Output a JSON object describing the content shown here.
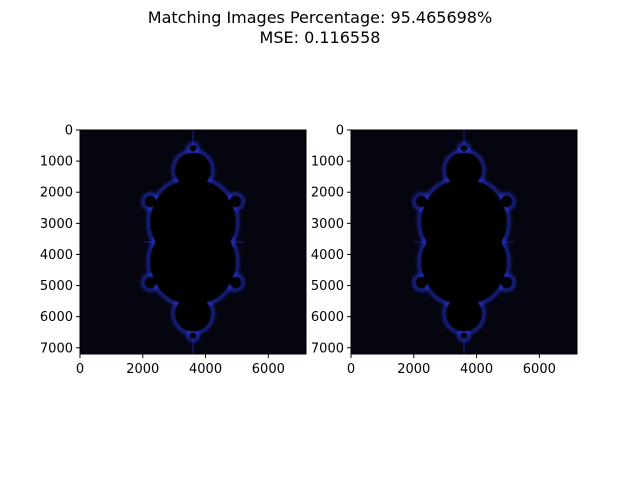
{
  "figure": {
    "title_line1": "Matching Images Percentage: 95.465698%",
    "title_line2": "MSE: 0.116558"
  },
  "chart_data": [
    {
      "type": "heatmap",
      "title": "",
      "xlabel": "",
      "ylabel": "",
      "xlim": [
        0,
        7200
      ],
      "ylim": [
        7200,
        0
      ],
      "xticks": [
        0,
        2000,
        4000,
        6000
      ],
      "yticks": [
        0,
        1000,
        2000,
        3000,
        4000,
        5000,
        6000,
        7000
      ],
      "xtick_labels": [
        "0",
        "2000",
        "4000",
        "6000"
      ],
      "ytick_labels": [
        "0",
        "1000",
        "2000",
        "3000",
        "4000",
        "5000",
        "6000",
        "7000"
      ],
      "image": "mandelbrot-set-render",
      "background_color": "#05050f",
      "set_color": "#000000",
      "edge_color": "#2a3cff"
    },
    {
      "type": "heatmap",
      "title": "",
      "xlabel": "",
      "ylabel": "",
      "xlim": [
        0,
        7200
      ],
      "ylim": [
        7200,
        0
      ],
      "xticks": [
        0,
        2000,
        4000,
        6000
      ],
      "yticks": [
        0,
        1000,
        2000,
        3000,
        4000,
        5000,
        6000,
        7000
      ],
      "xtick_labels": [
        "0",
        "2000",
        "4000",
        "6000"
      ],
      "ytick_labels": [
        "0",
        "1000",
        "2000",
        "3000",
        "4000",
        "5000",
        "6000",
        "7000"
      ],
      "image": "mandelbrot-set-render",
      "background_color": "#05050f",
      "set_color": "#000000",
      "edge_color": "#2a3cff"
    }
  ]
}
